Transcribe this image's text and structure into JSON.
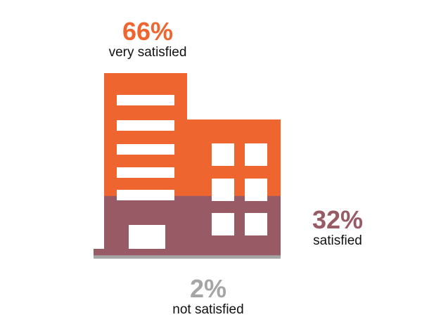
{
  "chart_data": {
    "type": "pictograph",
    "categories": [
      "very satisfied",
      "satisfied",
      "not satisfied"
    ],
    "values": [
      66,
      32,
      2
    ],
    "value_labels": [
      "66%",
      "32%",
      "2%"
    ],
    "colors": [
      "#EF6530",
      "#985A65",
      "#A5A5A5"
    ],
    "icon": "building-icon"
  }
}
